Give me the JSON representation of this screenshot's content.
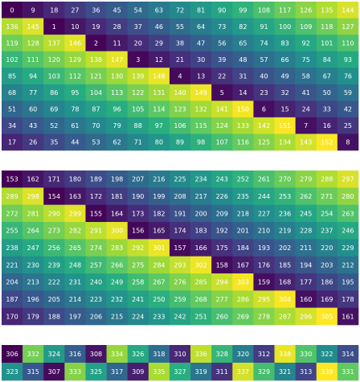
{
  "chart_data": [
    {
      "type": "heatmap",
      "title": "",
      "xlabel": "",
      "ylabel": "",
      "grid": false,
      "colormap": "viridis",
      "value_range": [
        0,
        152
      ],
      "values": [
        [
          0,
          9,
          18,
          27,
          36,
          45,
          54,
          63,
          72,
          81,
          90,
          99,
          108,
          117,
          126,
          135,
          144
        ],
        [
          136,
          145,
          1,
          10,
          19,
          28,
          37,
          46,
          55,
          64,
          73,
          82,
          91,
          100,
          109,
          118,
          127
        ],
        [
          119,
          128,
          137,
          146,
          2,
          11,
          20,
          29,
          38,
          47,
          56,
          65,
          74,
          83,
          92,
          101,
          110
        ],
        [
          102,
          111,
          120,
          129,
          138,
          147,
          3,
          12,
          21,
          30,
          39,
          48,
          57,
          66,
          75,
          84,
          93
        ],
        [
          85,
          94,
          103,
          112,
          121,
          130,
          139,
          148,
          4,
          13,
          22,
          31,
          40,
          49,
          58,
          67,
          76
        ],
        [
          68,
          77,
          86,
          95,
          104,
          113,
          122,
          131,
          140,
          149,
          5,
          14,
          23,
          32,
          41,
          50,
          59
        ],
        [
          51,
          60,
          69,
          78,
          87,
          96,
          105,
          114,
          123,
          132,
          141,
          150,
          6,
          15,
          24,
          33,
          42
        ],
        [
          34,
          43,
          52,
          61,
          70,
          79,
          88,
          97,
          106,
          115,
          124,
          133,
          142,
          151,
          7,
          16,
          25
        ],
        [
          17,
          26,
          35,
          44,
          53,
          62,
          71,
          80,
          89,
          98,
          107,
          116,
          125,
          134,
          143,
          152,
          8
        ]
      ]
    },
    {
      "type": "heatmap",
      "title": "",
      "xlabel": "",
      "ylabel": "",
      "grid": false,
      "colormap": "viridis",
      "value_range": [
        153,
        305
      ],
      "values": [
        [
          153,
          162,
          171,
          180,
          189,
          198,
          207,
          216,
          225,
          234,
          243,
          252,
          261,
          270,
          279,
          288,
          297
        ],
        [
          289,
          298,
          154,
          163,
          172,
          181,
          190,
          199,
          208,
          217,
          226,
          235,
          244,
          253,
          262,
          271,
          280
        ],
        [
          272,
          281,
          290,
          299,
          155,
          164,
          173,
          182,
          191,
          200,
          209,
          218,
          227,
          236,
          245,
          254,
          263
        ],
        [
          255,
          264,
          273,
          282,
          291,
          300,
          156,
          165,
          174,
          183,
          192,
          201,
          210,
          219,
          228,
          237,
          246
        ],
        [
          238,
          247,
          256,
          265,
          274,
          283,
          292,
          301,
          157,
          166,
          175,
          184,
          193,
          202,
          211,
          220,
          229
        ],
        [
          221,
          230,
          239,
          248,
          257,
          266,
          275,
          284,
          293,
          302,
          158,
          167,
          176,
          185,
          194,
          203,
          212
        ],
        [
          204,
          213,
          222,
          231,
          240,
          249,
          258,
          267,
          276,
          285,
          294,
          303,
          159,
          168,
          177,
          186,
          195
        ],
        [
          187,
          196,
          205,
          214,
          223,
          232,
          241,
          250,
          259,
          268,
          277,
          286,
          295,
          304,
          160,
          169,
          178
        ],
        [
          170,
          179,
          188,
          197,
          206,
          215,
          224,
          233,
          242,
          251,
          260,
          269,
          278,
          287,
          296,
          305,
          161
        ]
      ]
    },
    {
      "type": "heatmap",
      "title": "",
      "xlabel": "",
      "ylabel": "",
      "grid": false,
      "colormap": "viridis",
      "value_range": [
        306,
        339
      ],
      "values": [
        [
          306,
          332,
          324,
          316,
          308,
          334,
          326,
          318,
          310,
          336,
          328,
          320,
          312,
          338,
          330,
          322,
          314
        ],
        [
          323,
          315,
          307,
          333,
          325,
          317,
          309,
          335,
          327,
          319,
          311,
          337,
          329,
          321,
          313,
          339,
          331
        ]
      ]
    }
  ]
}
